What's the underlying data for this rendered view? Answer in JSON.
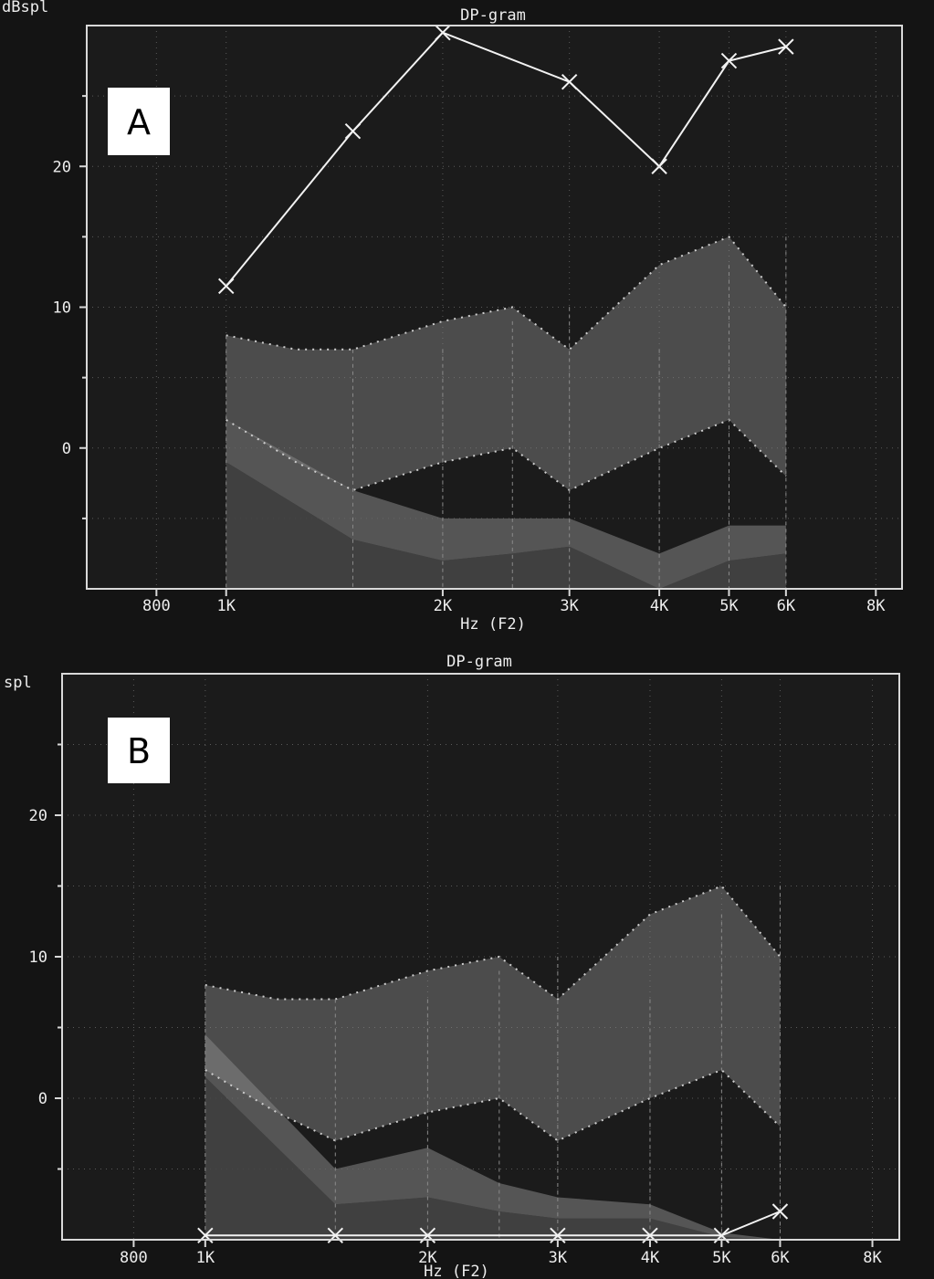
{
  "colors": {
    "background": "#141414",
    "plot_area": "#1b1b1b",
    "frame": "#d9d9d9",
    "grid": "#5a5a5a",
    "curve": "#f2f2f2",
    "band_upper": "#8a8a8a",
    "band_middle": "#6a6a6a",
    "band_noise": "#454545"
  },
  "chart_data": [
    {
      "type": "line",
      "panel": "A",
      "title": "DP-gram",
      "ylabel": "dBspl",
      "xlabel": "Hz (F2)",
      "x_scale": "log",
      "xlim": [
        640,
        8700
      ],
      "ylim": [
        -10,
        30
      ],
      "xticks": [
        {
          "value": 800,
          "label": "800"
        },
        {
          "value": 1000,
          "label": "1K"
        },
        {
          "value": 2000,
          "label": "2K"
        },
        {
          "value": 3000,
          "label": "3K"
        },
        {
          "value": 4000,
          "label": "4K"
        },
        {
          "value": 5000,
          "label": "5K"
        },
        {
          "value": 6000,
          "label": "6K"
        },
        {
          "value": 8000,
          "label": "8K"
        }
      ],
      "yticks": [
        {
          "value": 20,
          "label": "20"
        },
        {
          "value": 10,
          "label": "10"
        },
        {
          "value": 0,
          "label": "0"
        }
      ],
      "norm_upper_band": {
        "x": [
          1000,
          1250,
          1500,
          2000,
          2500,
          3000,
          4000,
          5000,
          6000
        ],
        "high": [
          8,
          7,
          7,
          9,
          10,
          7,
          13,
          15,
          10
        ],
        "low": [
          2,
          -1,
          -3,
          -1,
          0,
          -3,
          0,
          2,
          -2
        ]
      },
      "norm_lower_band": {
        "x": [
          1000,
          1500,
          2000,
          2500,
          3000,
          4000,
          5000,
          6000
        ],
        "high": [
          2,
          -3,
          -5,
          -5,
          -5,
          -7.5,
          -5.5,
          -5.5
        ],
        "low": [
          -1,
          -6.5,
          -8,
          -7.5,
          -7,
          -10,
          -8,
          -7.5
        ]
      },
      "noise_floor": {
        "x": [
          1000,
          1500,
          2000,
          2500,
          3000,
          4000,
          5000,
          6000
        ],
        "values": [
          -1,
          -6.5,
          -8,
          -7.5,
          -7,
          -10,
          -8,
          -7.5
        ]
      },
      "series": [
        {
          "x": [
            1000,
            1500,
            2000,
            3000,
            4000,
            5000,
            6000
          ],
          "values": [
            11.5,
            22.5,
            29.5,
            26,
            20,
            27.5,
            28.5
          ]
        }
      ]
    },
    {
      "type": "line",
      "panel": "B",
      "title": "DP-gram",
      "ylabel": "spl",
      "xlabel": "Hz (F2)",
      "x_scale": "log",
      "xlim": [
        640,
        8700
      ],
      "ylim": [
        -10,
        30
      ],
      "xticks": [
        {
          "value": 800,
          "label": "800"
        },
        {
          "value": 1000,
          "label": "1K"
        },
        {
          "value": 2000,
          "label": "2K"
        },
        {
          "value": 3000,
          "label": "3K"
        },
        {
          "value": 4000,
          "label": "4K"
        },
        {
          "value": 5000,
          "label": "5K"
        },
        {
          "value": 6000,
          "label": "6K"
        },
        {
          "value": 8000,
          "label": "8K"
        }
      ],
      "yticks": [
        {
          "value": 20,
          "label": "20"
        },
        {
          "value": 10,
          "label": "10"
        },
        {
          "value": 0,
          "label": "0"
        }
      ],
      "norm_upper_band": {
        "x": [
          1000,
          1250,
          1500,
          2000,
          2500,
          3000,
          4000,
          5000,
          6000
        ],
        "high": [
          8,
          7,
          7,
          9,
          10,
          7,
          13,
          15,
          10
        ],
        "low": [
          2,
          -1,
          -3,
          -1,
          0,
          -3,
          0,
          2,
          -2
        ]
      },
      "norm_lower_band": {
        "x": [
          1000,
          1500,
          2000,
          2500,
          3000,
          4000,
          5000,
          6000
        ],
        "high": [
          4.5,
          -5,
          -3.5,
          -6,
          -7,
          -7.5,
          -9.5,
          -10
        ],
        "low": [
          1.5,
          -7.5,
          -7,
          -8,
          -8.5,
          -8.5,
          -9.8,
          -10
        ]
      },
      "noise_floor": {
        "x": [
          1000,
          1500,
          2000,
          2500,
          3000,
          4000,
          5000,
          6000
        ],
        "values": [
          1.5,
          -7.5,
          -7,
          -8,
          -8.5,
          -8.5,
          -9.8,
          -10
        ]
      },
      "series": [
        {
          "x": [
            1000,
            1500,
            2000,
            3000,
            4000,
            5000,
            6000
          ],
          "values": [
            -9.7,
            -9.7,
            -9.7,
            -9.7,
            -9.7,
            -9.7,
            -8
          ]
        }
      ]
    }
  ]
}
